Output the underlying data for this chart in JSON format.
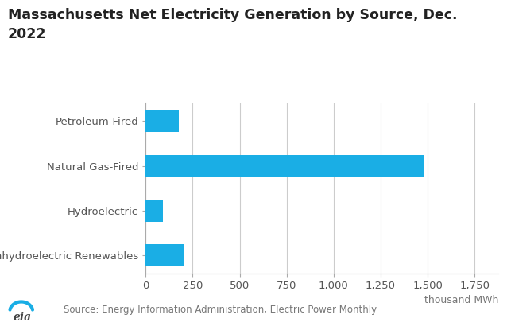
{
  "title_line1": "Massachusetts Net Electricity Generation by Source, Dec.",
  "title_line2": "2022",
  "categories": [
    "Petroleum-Fired",
    "Natural Gas-Fired",
    "Hydroelectric",
    "Nonhydroelectric Renewables"
  ],
  "values": [
    175,
    1480,
    90,
    200
  ],
  "bar_color": "#1AAEE5",
  "background_color": "#ffffff",
  "xlabel": "thousand MWh",
  "x_ticks": [
    0,
    250,
    500,
    750,
    1000,
    1250,
    1500,
    1750
  ],
  "x_tick_labels": [
    "0",
    "250",
    "500",
    "750",
    "1,000",
    "1,250",
    "1,500",
    "1,750"
  ],
  "xlim": [
    0,
    1875
  ],
  "source_text": "Source: Energy Information Administration, Electric Power Monthly",
  "title_fontsize": 12.5,
  "tick_fontsize": 9.5,
  "xlabel_fontsize": 9,
  "source_fontsize": 8.5
}
